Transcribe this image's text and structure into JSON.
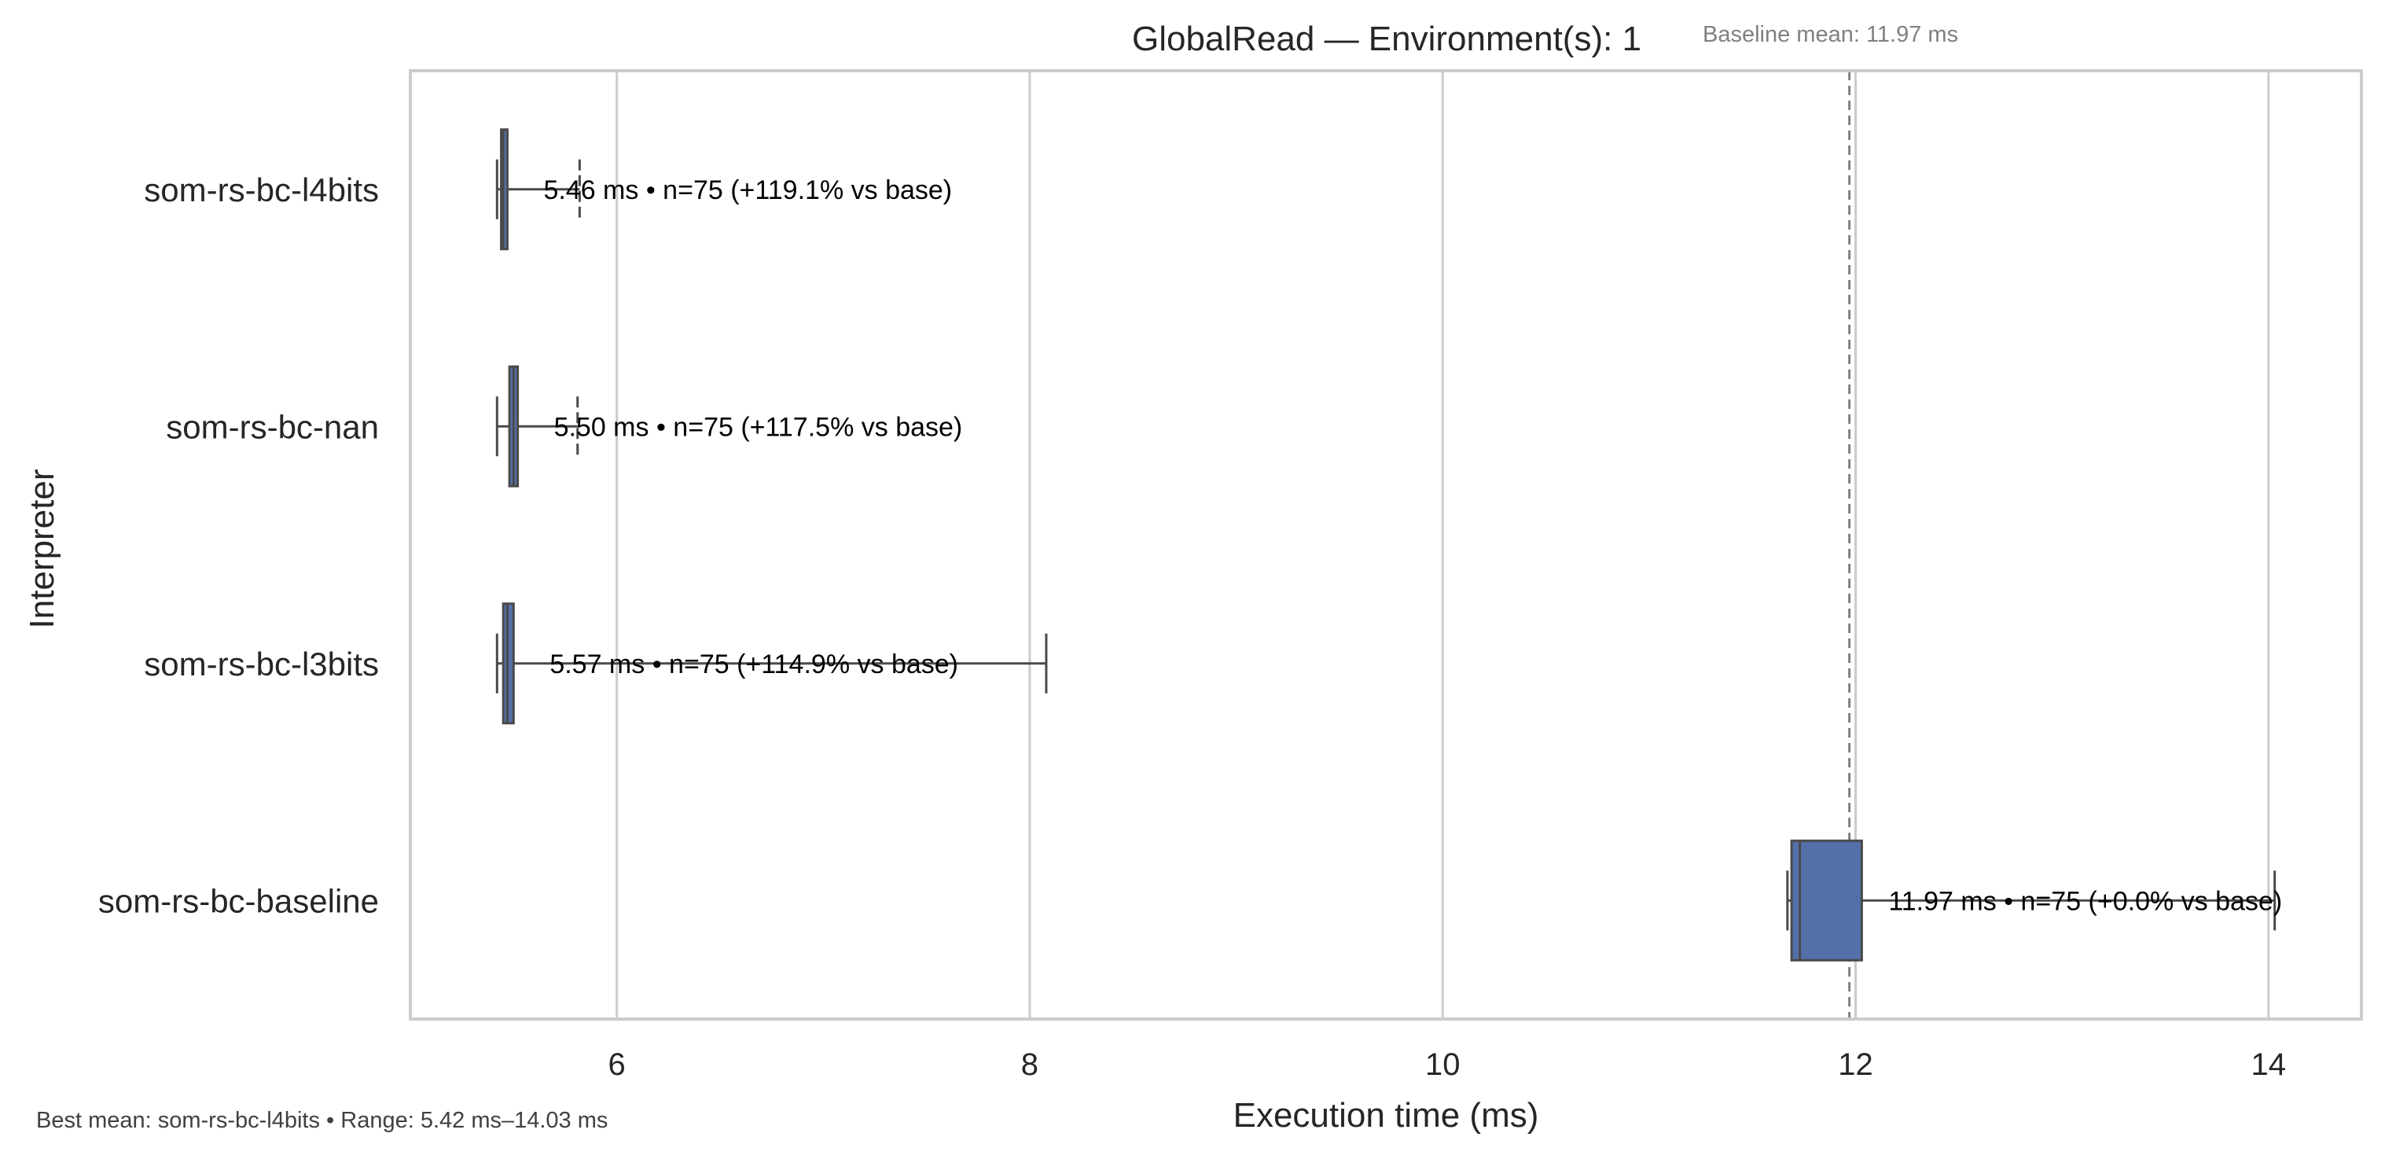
{
  "chart_data": {
    "type": "box",
    "orientation": "horizontal",
    "title": "GlobalRead — Environment(s): 1",
    "subtitle": "Baseline mean: 11.97 ms",
    "xlabel": "Execution time (ms)",
    "ylabel": "Interpreter",
    "xlim": [
      5.0,
      14.45
    ],
    "xticks": [
      6,
      8,
      10,
      12,
      14
    ],
    "grid": "vertical",
    "box_color": "#5470aa",
    "edge_color": "#4a4a4a",
    "baseline_line": {
      "value": 11.97,
      "style": "dashed",
      "color": "#808080"
    },
    "categories": [
      "som-rs-bc-l4bits",
      "som-rs-bc-nan",
      "som-rs-bc-l3bits",
      "som-rs-bc-baseline"
    ],
    "boxes": [
      {
        "name": "som-rs-bc-l4bits",
        "whisker_low": 5.42,
        "q1": 5.44,
        "median": 5.45,
        "q3": 5.47,
        "whisker_high": 5.82
      },
      {
        "name": "som-rs-bc-nan",
        "whisker_low": 5.42,
        "q1": 5.48,
        "median": 5.5,
        "q3": 5.52,
        "whisker_high": 5.81
      },
      {
        "name": "som-rs-bc-l3bits",
        "whisker_low": 5.42,
        "q1": 5.45,
        "median": 5.47,
        "q3": 5.5,
        "whisker_high": 8.08
      },
      {
        "name": "som-rs-bc-baseline",
        "whisker_low": 11.67,
        "q1": 11.69,
        "median": 11.73,
        "q3": 12.03,
        "whisker_high": 14.03
      }
    ],
    "annotations": [
      "5.46 ms • n=75 (+119.1% vs base)",
      "5.50 ms • n=75 (+117.5% vs base)",
      "5.57 ms • n=75 (+114.9% vs base)",
      "11.97 ms • n=75 (+0.0% vs base)"
    ],
    "footer": "Best mean: som-rs-bc-l4bits • Range: 5.42 ms–14.03 ms"
  }
}
